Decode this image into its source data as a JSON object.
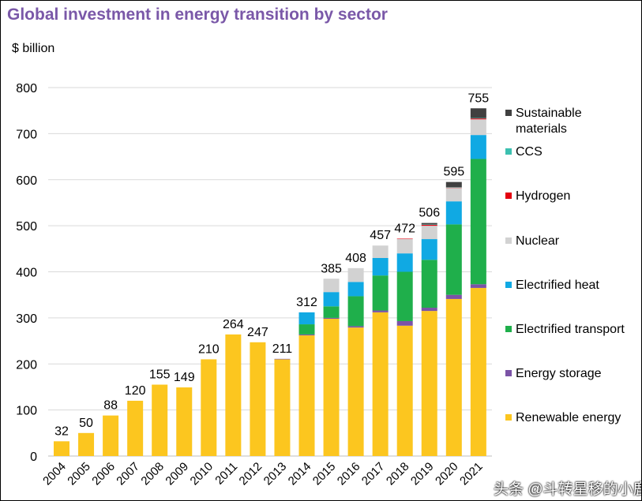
{
  "chart_data": {
    "type": "bar",
    "stacked": true,
    "title": "Global investment in energy transition by sector",
    "ylabel": "$ billion",
    "xlabel": "",
    "ylim": [
      0,
      800
    ],
    "yticks": [
      0,
      100,
      200,
      300,
      400,
      500,
      600,
      700,
      800
    ],
    "grid": true,
    "legend_position": "right",
    "categories": [
      "2004",
      "2005",
      "2006",
      "2007",
      "2008",
      "2009",
      "2010",
      "2011",
      "2012",
      "2013",
      "2014",
      "2015",
      "2016",
      "2017",
      "2018",
      "2019",
      "2020",
      "2021"
    ],
    "totals": [
      32,
      50,
      88,
      120,
      155,
      149,
      210,
      264,
      247,
      211,
      312,
      385,
      408,
      457,
      472,
      506,
      595,
      755
    ],
    "series": [
      {
        "name": "Renewable energy",
        "color": "#fcc61f",
        "values": [
          32,
          50,
          88,
          120,
          155,
          149,
          210,
          264,
          247,
          210,
          262,
          298,
          279,
          312,
          283,
          315,
          341,
          365
        ]
      },
      {
        "name": "Energy storage",
        "color": "#7b53a6",
        "values": [
          0,
          0,
          0,
          0,
          0,
          0,
          0,
          0,
          0,
          1,
          2,
          2,
          3,
          4,
          10,
          7,
          9,
          8
        ]
      },
      {
        "name": "Electrified transport",
        "color": "#1faf4b",
        "values": [
          0,
          0,
          0,
          0,
          0,
          0,
          0,
          0,
          0,
          0,
          22,
          25,
          65,
          76,
          107,
          104,
          153,
          272
        ]
      },
      {
        "name": "Electrified heat",
        "color": "#10a9e3",
        "values": [
          0,
          0,
          0,
          0,
          0,
          0,
          0,
          0,
          0,
          0,
          26,
          31,
          31,
          38,
          40,
          45,
          50,
          52
        ]
      },
      {
        "name": "Nuclear",
        "color": "#d2d2d2",
        "values": [
          0,
          0,
          0,
          0,
          0,
          0,
          0,
          0,
          0,
          0,
          0,
          29,
          30,
          27,
          31,
          29,
          29,
          34
        ]
      },
      {
        "name": "Hydrogen",
        "color": "#e3000f",
        "values": [
          0,
          0,
          0,
          0,
          0,
          0,
          0,
          0,
          0,
          0,
          0,
          0,
          0,
          0,
          1,
          2,
          1,
          2
        ]
      },
      {
        "name": "CCS",
        "color": "#3cc0b0",
        "values": [
          0,
          0,
          0,
          0,
          0,
          0,
          0,
          0,
          0,
          0,
          0,
          0,
          0,
          0,
          0,
          1,
          1,
          1
        ]
      },
      {
        "name": "Sustainable materials",
        "color": "#404040",
        "values": [
          0,
          0,
          0,
          0,
          0,
          0,
          0,
          0,
          0,
          0,
          0,
          0,
          0,
          0,
          0,
          3,
          11,
          21
        ]
      }
    ]
  },
  "legend_order": [
    "Sustainable materials",
    "CCS",
    "Hydrogen",
    "Nuclear",
    "Electrified heat",
    "Electrified transport",
    "Energy storage",
    "Renewable energy"
  ],
  "watermark": "头条 @斗转星移的小鹿"
}
